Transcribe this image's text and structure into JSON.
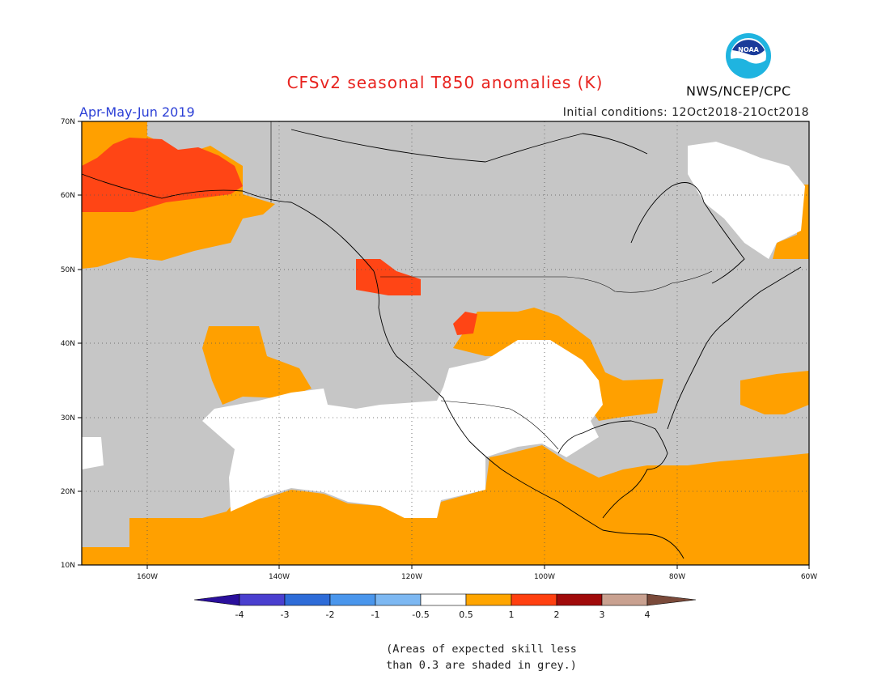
{
  "header": {
    "title": "CFSv2 seasonal T850 anomalies (K)",
    "period": "Apr-May-Jun 2019",
    "initial_conditions": "Initial conditions: 12Oct2018-21Oct2018",
    "agency": "NWS/NCEP/CPC",
    "logo_text": "NOAA"
  },
  "axes": {
    "lat_labels": [
      "70N",
      "60N",
      "50N",
      "40N",
      "30N",
      "20N",
      "10N"
    ],
    "lon_labels": [
      "160W",
      "140W",
      "120W",
      "100W",
      "80W",
      "60W"
    ]
  },
  "colorbar": {
    "labels": [
      "-4",
      "-3",
      "-2",
      "-1",
      "-0.5",
      "0.5",
      "1",
      "2",
      "3",
      "4"
    ],
    "colors": [
      "#2a0f9c",
      "#4a3fcf",
      "#2e6cd8",
      "#4a96ec",
      "#7db8f2",
      "#ffffff",
      "#ffa500",
      "#ff4010",
      "#a00a0a",
      "#c9a190",
      "#7a4a3a"
    ]
  },
  "colors": {
    "grey_shading": "#c6c6c6",
    "anomaly_positive_1": "#ffa000",
    "anomaly_positive_2": "#ff4515",
    "neutral": "#ffffff"
  },
  "note": {
    "line1": "(Areas of expected skill less",
    "line2": "than 0.3 are shaded in grey.)"
  }
}
